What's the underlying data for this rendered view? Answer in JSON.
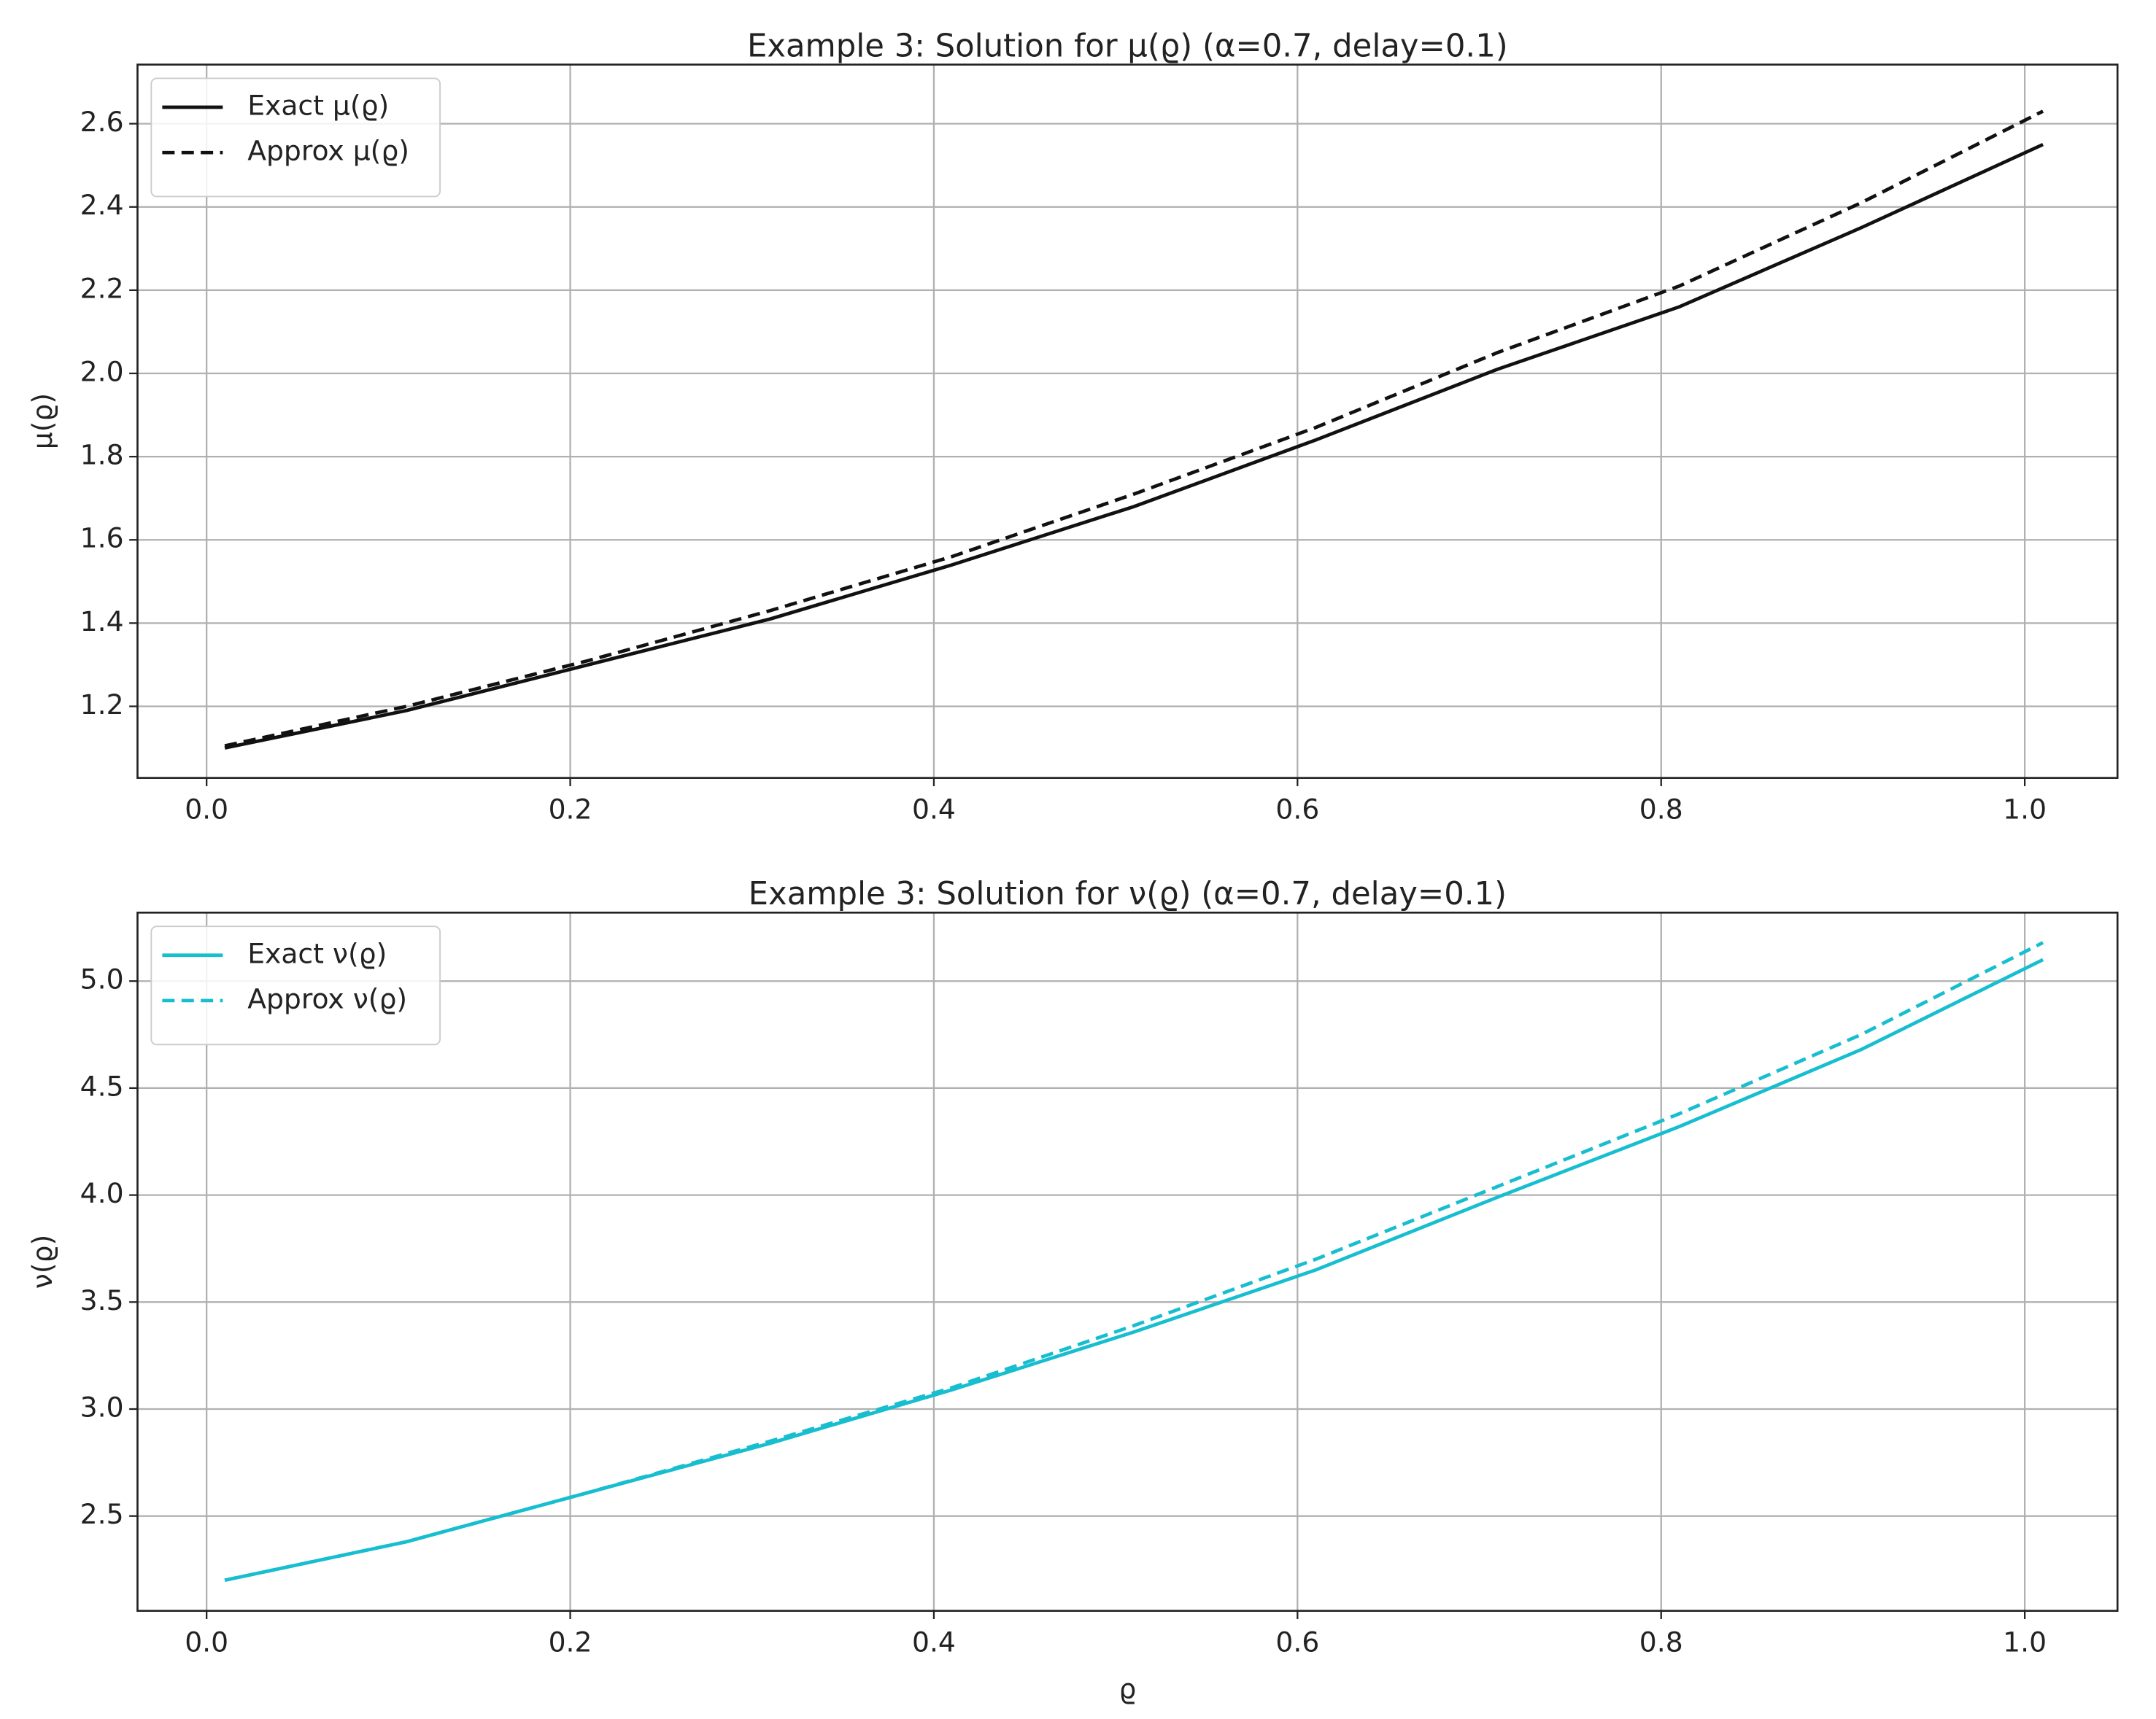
{
  "chart_data": [
    {
      "type": "line",
      "title": "Example 3: Solution for μ(ϱ) (α=0.7, delay=0.1)",
      "y_label": "μ(ϱ)",
      "x": [
        0.01,
        0.11,
        0.21,
        0.31,
        0.41,
        0.51,
        0.61,
        0.71,
        0.81,
        0.91,
        1.01
      ],
      "series": [
        {
          "name": "Exact μ(ϱ)",
          "color": "#111111",
          "linestyle": "solid",
          "values": [
            1.1,
            1.19,
            1.3,
            1.41,
            1.54,
            1.68,
            1.84,
            2.01,
            2.16,
            2.35,
            2.55
          ]
        },
        {
          "name": "Approx μ(ϱ)",
          "color": "#111111",
          "linestyle": "dashed",
          "values": [
            1.105,
            1.2,
            1.31,
            1.43,
            1.56,
            1.71,
            1.87,
            2.05,
            2.21,
            2.41,
            2.63
          ]
        }
      ],
      "xlim": [
        -0.038,
        1.051
      ],
      "ylim": [
        1.028,
        2.742
      ],
      "xticks": [
        {
          "value": 0,
          "label": "0.0"
        },
        0.2,
        0.4,
        0.6,
        0.8,
        {
          "value": 1,
          "label": "1.0"
        }
      ],
      "yticks": [
        1.2,
        1.4,
        1.6,
        1.8,
        {
          "value": 2,
          "label": "2.0"
        },
        2.2,
        2.4,
        2.6
      ],
      "grid": true,
      "legend": "upper left"
    },
    {
      "type": "line",
      "title": "Example 3: Solution for ν(ϱ) (α=0.7, delay=0.1)",
      "x_label": "ϱ",
      "y_label": "ν(ϱ)",
      "x": [
        0.01,
        0.11,
        0.21,
        0.31,
        0.41,
        0.51,
        0.61,
        0.71,
        0.81,
        0.91,
        1.01
      ],
      "series": [
        {
          "name": "Exact ν(ϱ)",
          "color": "#17becf",
          "linestyle": "solid",
          "values": [
            2.2,
            2.38,
            2.61,
            2.84,
            3.09,
            3.36,
            3.65,
            3.99,
            4.32,
            4.68,
            5.1
          ]
        },
        {
          "name": "Approx ν(ϱ)",
          "color": "#17becf",
          "linestyle": "dashed",
          "values": [
            2.2,
            2.38,
            2.61,
            2.85,
            3.1,
            3.39,
            3.7,
            4.04,
            4.38,
            4.75,
            5.18
          ]
        }
      ],
      "xlim": [
        -0.038,
        1.051
      ],
      "ylim": [
        2.057,
        5.32
      ],
      "xticks": [
        {
          "value": 0,
          "label": "0.0"
        },
        0.2,
        0.4,
        0.6,
        0.8,
        {
          "value": 1,
          "label": "1.0"
        }
      ],
      "yticks": [
        2.5,
        {
          "value": 3,
          "label": "3.0"
        },
        3.5,
        {
          "value": 4,
          "label": "4.0"
        },
        4.5,
        {
          "value": 5,
          "label": "5.0"
        }
      ],
      "grid": true,
      "legend": "upper left"
    }
  ]
}
